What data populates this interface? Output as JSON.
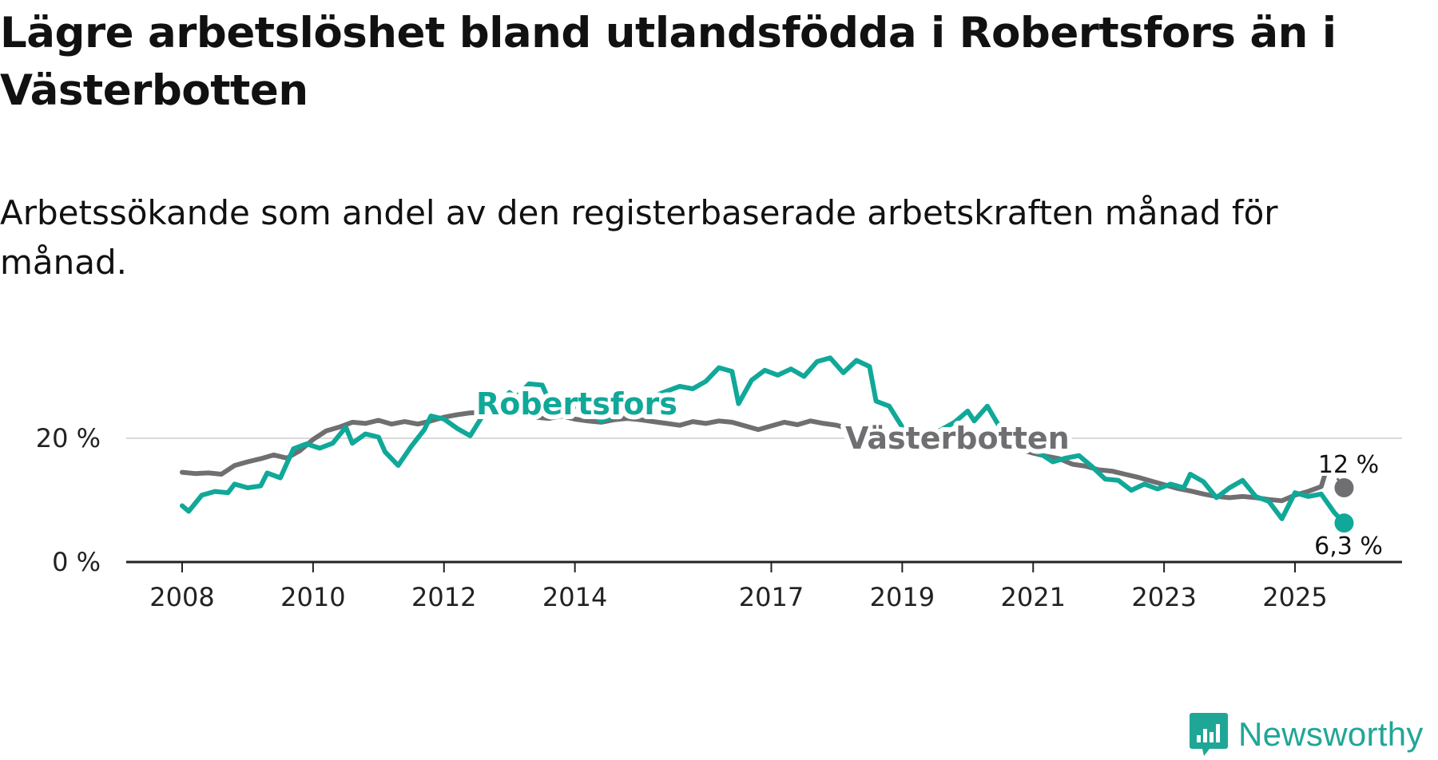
{
  "title": "Lägre arbetslöshet bland utlandsfödda i Robertsfors än i Västerbotten",
  "subtitle": "Arbetssökande som andel av den registerbaserade arbetskraften månad för månad.",
  "brand": {
    "name": "Newsworthy",
    "color": "#20a696"
  },
  "chart_data": {
    "type": "line",
    "title": "Lägre arbetslöshet bland utlandsfödda i Robertsfors än i Västerbotten",
    "subtitle": "Arbetssökande som andel av den registerbaserade arbetskraften månad för månad.",
    "xlabel": "",
    "ylabel": "",
    "xlim": [
      2008,
      2026
    ],
    "ylim": [
      0,
      40
    ],
    "x_ticks": [
      {
        "value": 2008,
        "label": "2008"
      },
      {
        "value": 2010,
        "label": "2010"
      },
      {
        "value": 2012,
        "label": "2012"
      },
      {
        "value": 2014,
        "label": "2014"
      },
      {
        "value": 2017,
        "label": "2017"
      },
      {
        "value": 2019,
        "label": "2019"
      },
      {
        "value": 2021,
        "label": "2021"
      },
      {
        "value": 2023,
        "label": "2023"
      },
      {
        "value": 2025,
        "label": "2025"
      }
    ],
    "y_ticks": [
      {
        "value": 0,
        "label": "0 %"
      },
      {
        "value": 20,
        "label": "20 %"
      }
    ],
    "grid": true,
    "series": [
      {
        "name": "Västerbotten",
        "label": "Västerbotten",
        "color": "#6f6f72",
        "end_label": "12 %",
        "points": [
          [
            2008.0,
            14.5
          ],
          [
            2008.2,
            14.3
          ],
          [
            2008.4,
            14.4
          ],
          [
            2008.6,
            14.2
          ],
          [
            2008.8,
            15.6
          ],
          [
            2009.0,
            16.2
          ],
          [
            2009.2,
            16.7
          ],
          [
            2009.4,
            17.3
          ],
          [
            2009.6,
            16.8
          ],
          [
            2009.8,
            18.0
          ],
          [
            2010.0,
            19.8
          ],
          [
            2010.2,
            21.2
          ],
          [
            2010.4,
            21.8
          ],
          [
            2010.6,
            22.6
          ],
          [
            2010.8,
            22.4
          ],
          [
            2011.0,
            22.9
          ],
          [
            2011.2,
            22.3
          ],
          [
            2011.4,
            22.7
          ],
          [
            2011.6,
            22.3
          ],
          [
            2011.8,
            22.8
          ],
          [
            2012.0,
            23.4
          ],
          [
            2012.2,
            23.8
          ],
          [
            2012.4,
            24.1
          ],
          [
            2012.6,
            24.2
          ],
          [
            2012.8,
            24.3
          ],
          [
            2013.0,
            24.0
          ],
          [
            2013.2,
            23.7
          ],
          [
            2013.4,
            23.4
          ],
          [
            2013.6,
            23.2
          ],
          [
            2013.8,
            23.6
          ],
          [
            2014.0,
            23.1
          ],
          [
            2014.2,
            22.8
          ],
          [
            2014.4,
            22.6
          ],
          [
            2014.6,
            23.0
          ],
          [
            2014.8,
            23.2
          ],
          [
            2015.0,
            23.0
          ],
          [
            2015.2,
            22.7
          ],
          [
            2015.4,
            22.4
          ],
          [
            2015.6,
            22.1
          ],
          [
            2015.8,
            22.7
          ],
          [
            2016.0,
            22.4
          ],
          [
            2016.2,
            22.8
          ],
          [
            2016.4,
            22.6
          ],
          [
            2016.6,
            22.0
          ],
          [
            2016.8,
            21.4
          ],
          [
            2017.0,
            22.0
          ],
          [
            2017.2,
            22.6
          ],
          [
            2017.4,
            22.2
          ],
          [
            2017.6,
            22.8
          ],
          [
            2017.8,
            22.4
          ],
          [
            2018.0,
            22.1
          ],
          [
            2018.2,
            21.5
          ],
          [
            2018.4,
            21.0
          ],
          [
            2018.6,
            20.6
          ],
          [
            2018.8,
            20.2
          ],
          [
            2019.0,
            20.0
          ],
          [
            2019.2,
            19.9
          ],
          [
            2019.4,
            19.7
          ],
          [
            2019.6,
            19.9
          ],
          [
            2019.8,
            20.6
          ],
          [
            2020.0,
            20.4
          ],
          [
            2020.2,
            19.6
          ],
          [
            2020.4,
            19.0
          ],
          [
            2020.6,
            18.7
          ],
          [
            2020.8,
            18.2
          ],
          [
            2021.0,
            17.6
          ],
          [
            2021.2,
            17.1
          ],
          [
            2021.4,
            16.7
          ],
          [
            2021.6,
            15.8
          ],
          [
            2021.8,
            15.5
          ],
          [
            2022.0,
            14.9
          ],
          [
            2022.2,
            14.7
          ],
          [
            2022.4,
            14.2
          ],
          [
            2022.6,
            13.7
          ],
          [
            2022.8,
            13.1
          ],
          [
            2023.0,
            12.5
          ],
          [
            2023.2,
            11.9
          ],
          [
            2023.4,
            11.5
          ],
          [
            2023.6,
            11.0
          ],
          [
            2023.8,
            10.6
          ],
          [
            2024.0,
            10.4
          ],
          [
            2024.2,
            10.6
          ],
          [
            2024.4,
            10.4
          ],
          [
            2024.6,
            10.1
          ],
          [
            2024.8,
            9.9
          ],
          [
            2025.0,
            10.8
          ],
          [
            2025.2,
            11.4
          ],
          [
            2025.4,
            12.2
          ],
          [
            2025.5,
            15.6
          ]
        ],
        "end_point": [
          2025.75,
          12.0
        ]
      },
      {
        "name": "Robertsfors",
        "label": "Robertsfors",
        "color": "#10a898",
        "end_label": "6,3 %",
        "points": [
          [
            2008.0,
            9.1
          ],
          [
            2008.1,
            8.2
          ],
          [
            2008.3,
            10.8
          ],
          [
            2008.5,
            11.4
          ],
          [
            2008.7,
            11.2
          ],
          [
            2008.8,
            12.6
          ],
          [
            2009.0,
            12.0
          ],
          [
            2009.2,
            12.3
          ],
          [
            2009.3,
            14.4
          ],
          [
            2009.5,
            13.6
          ],
          [
            2009.7,
            18.3
          ],
          [
            2009.9,
            19.1
          ],
          [
            2010.1,
            18.4
          ],
          [
            2010.3,
            19.2
          ],
          [
            2010.5,
            21.8
          ],
          [
            2010.6,
            19.2
          ],
          [
            2010.8,
            20.7
          ],
          [
            2011.0,
            20.2
          ],
          [
            2011.1,
            17.8
          ],
          [
            2011.3,
            15.6
          ],
          [
            2011.5,
            18.7
          ],
          [
            2011.7,
            21.4
          ],
          [
            2011.8,
            23.6
          ],
          [
            2012.0,
            23.1
          ],
          [
            2012.2,
            21.6
          ],
          [
            2012.4,
            20.4
          ],
          [
            2012.6,
            23.8
          ],
          [
            2012.8,
            24.4
          ],
          [
            2013.0,
            27.4
          ],
          [
            2013.1,
            26.6
          ],
          [
            2013.3,
            28.8
          ],
          [
            2013.5,
            28.6
          ],
          [
            2013.6,
            26.2
          ],
          [
            2013.8,
            25.4
          ],
          [
            2014.0,
            25.2
          ],
          [
            2014.2,
            24.6
          ],
          [
            2014.4,
            22.8
          ],
          [
            2014.6,
            23.6
          ],
          [
            2014.8,
            24.0
          ],
          [
            2015.0,
            25.6
          ],
          [
            2015.2,
            26.8
          ],
          [
            2015.4,
            27.6
          ],
          [
            2015.6,
            28.4
          ],
          [
            2015.8,
            28.0
          ],
          [
            2016.0,
            29.2
          ],
          [
            2016.2,
            31.4
          ],
          [
            2016.4,
            30.8
          ],
          [
            2016.5,
            25.6
          ],
          [
            2016.7,
            29.4
          ],
          [
            2016.9,
            31.0
          ],
          [
            2017.1,
            30.2
          ],
          [
            2017.3,
            31.2
          ],
          [
            2017.5,
            30.0
          ],
          [
            2017.7,
            32.4
          ],
          [
            2017.9,
            33.0
          ],
          [
            2018.1,
            30.6
          ],
          [
            2018.3,
            32.6
          ],
          [
            2018.5,
            31.6
          ],
          [
            2018.6,
            26.0
          ],
          [
            2018.8,
            25.2
          ],
          [
            2019.0,
            21.8
          ],
          [
            2019.2,
            20.8
          ],
          [
            2019.4,
            20.2
          ],
          [
            2019.6,
            21.4
          ],
          [
            2019.8,
            22.6
          ],
          [
            2020.0,
            24.4
          ],
          [
            2020.1,
            22.8
          ],
          [
            2020.3,
            25.2
          ],
          [
            2020.5,
            21.6
          ],
          [
            2020.7,
            19.8
          ],
          [
            2020.9,
            18.6
          ],
          [
            2021.1,
            17.6
          ],
          [
            2021.3,
            16.2
          ],
          [
            2021.5,
            16.8
          ],
          [
            2021.7,
            17.2
          ],
          [
            2021.9,
            15.4
          ],
          [
            2022.1,
            13.4
          ],
          [
            2022.3,
            13.2
          ],
          [
            2022.5,
            11.6
          ],
          [
            2022.7,
            12.6
          ],
          [
            2022.9,
            11.8
          ],
          [
            2023.1,
            12.6
          ],
          [
            2023.3,
            12.0
          ],
          [
            2023.4,
            14.2
          ],
          [
            2023.6,
            13.0
          ],
          [
            2023.8,
            10.4
          ],
          [
            2024.0,
            12.0
          ],
          [
            2024.2,
            13.2
          ],
          [
            2024.4,
            10.6
          ],
          [
            2024.6,
            9.8
          ],
          [
            2024.8,
            7.0
          ],
          [
            2025.0,
            11.2
          ],
          [
            2025.2,
            10.6
          ],
          [
            2025.4,
            11.0
          ],
          [
            2025.6,
            8.0
          ],
          [
            2025.75,
            6.3
          ]
        ],
        "end_point": [
          2025.75,
          6.3
        ]
      }
    ]
  }
}
